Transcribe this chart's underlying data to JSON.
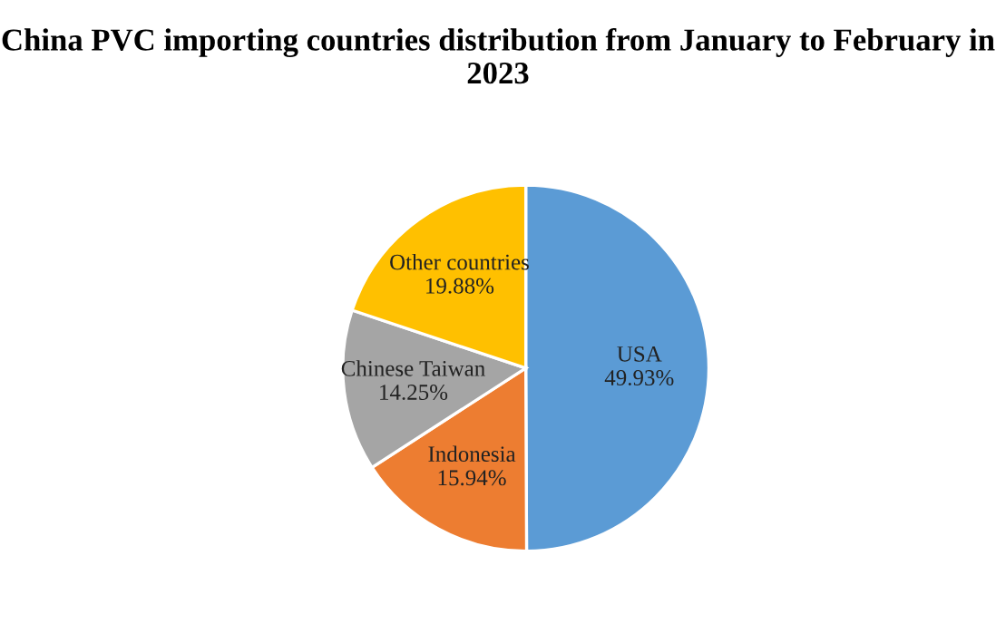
{
  "chart_data": {
    "type": "pie",
    "title": "China PVC importing countries distribution from January to February in 2023",
    "categories": [
      "USA",
      "Indonesia",
      "Chinese Taiwan",
      "Other countries"
    ],
    "values": [
      49.93,
      15.94,
      14.25,
      19.88
    ],
    "value_labels": [
      "49.93%",
      "15.94%",
      "14.25%",
      "19.88%"
    ],
    "colors": [
      "#5b9bd5",
      "#ed7d31",
      "#a5a5a5",
      "#ffc000"
    ]
  }
}
